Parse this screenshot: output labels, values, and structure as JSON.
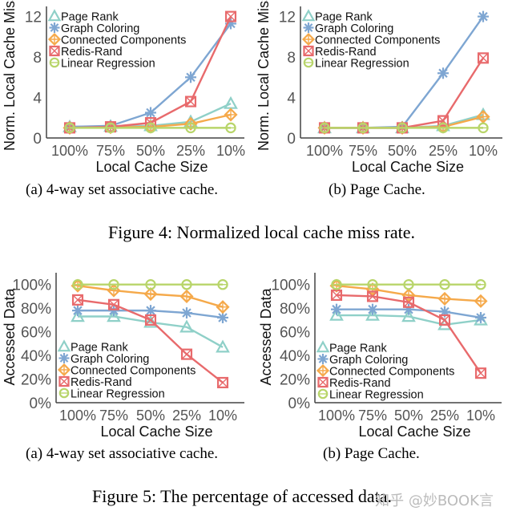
{
  "chart_data": [
    {
      "id": "fig4a",
      "type": "line",
      "xlabel": "Local Cache Size",
      "ylabel": "Norm. Local Cache Miss",
      "categories": [
        "100%",
        "75%",
        "50%",
        "25%",
        "10%"
      ],
      "yticks": [
        0,
        4,
        8,
        12
      ],
      "ytick_labels": [
        "0",
        "4",
        "8",
        "12"
      ],
      "ylim": [
        0,
        13
      ],
      "legend": "top-left",
      "series": [
        {
          "name": "Page Rank",
          "values": [
            1.1,
            1.15,
            1.2,
            1.6,
            3.4
          ]
        },
        {
          "name": "Graph Coloring",
          "values": [
            1.1,
            1.2,
            2.5,
            6.0,
            11.3
          ]
        },
        {
          "name": "Connected Components",
          "values": [
            1.0,
            1.05,
            1.1,
            1.4,
            2.3
          ]
        },
        {
          "name": "Redis-Rand",
          "values": [
            1.0,
            1.1,
            1.5,
            3.6,
            12.0
          ]
        },
        {
          "name": "Linear Regression",
          "values": [
            1.0,
            1.0,
            1.0,
            1.0,
            1.0
          ]
        }
      ]
    },
    {
      "id": "fig4b",
      "type": "line",
      "xlabel": "Local Cache Size",
      "ylabel": "Norm. Local Cache Miss",
      "categories": [
        "100%",
        "75%",
        "50%",
        "25%",
        "10%"
      ],
      "yticks": [
        0,
        4,
        8,
        12
      ],
      "ytick_labels": [
        "0",
        "4",
        "8",
        "12"
      ],
      "ylim": [
        0,
        13
      ],
      "legend": "top-left",
      "series": [
        {
          "name": "Page Rank",
          "values": [
            1.0,
            1.0,
            1.0,
            1.2,
            2.3
          ]
        },
        {
          "name": "Graph Coloring",
          "values": [
            1.0,
            1.0,
            1.1,
            6.4,
            12.0
          ]
        },
        {
          "name": "Connected Components",
          "values": [
            1.0,
            1.0,
            1.0,
            1.1,
            2.1
          ]
        },
        {
          "name": "Redis-Rand",
          "values": [
            1.0,
            1.0,
            1.0,
            1.7,
            7.9
          ]
        },
        {
          "name": "Linear Regression",
          "values": [
            1.0,
            1.0,
            1.0,
            1.0,
            1.0
          ]
        }
      ]
    },
    {
      "id": "fig5a",
      "type": "line",
      "xlabel": "Local Cache Size",
      "ylabel": "Accessed Data",
      "categories": [
        "100%",
        "75%",
        "50%",
        "25%",
        "10%"
      ],
      "yticks": [
        0,
        20,
        40,
        60,
        80,
        100
      ],
      "ytick_labels": [
        "0%",
        "20%",
        "40%",
        "60%",
        "80%",
        "100%"
      ],
      "ylim": [
        0,
        110
      ],
      "legend": "bottom-left",
      "series": [
        {
          "name": "Page Rank",
          "values": [
            73,
            73,
            68,
            64,
            47
          ]
        },
        {
          "name": "Graph Coloring",
          "values": [
            78,
            78,
            78,
            76,
            72
          ]
        },
        {
          "name": "Connected Components",
          "values": [
            99,
            95,
            92,
            90,
            81
          ]
        },
        {
          "name": "Redis-Rand",
          "values": [
            87,
            83,
            70,
            41,
            17
          ]
        },
        {
          "name": "Linear Regression",
          "values": [
            100,
            100,
            100,
            100,
            100
          ]
        }
      ]
    },
    {
      "id": "fig5b",
      "type": "line",
      "xlabel": "Local Cache Size",
      "ylabel": "Accessed Data",
      "categories": [
        "100%",
        "75%",
        "50%",
        "25%",
        "10%"
      ],
      "yticks": [
        0,
        20,
        40,
        60,
        80,
        100
      ],
      "ytick_labels": [
        "0%",
        "20%",
        "40%",
        "60%",
        "80%",
        "100%"
      ],
      "ylim": [
        0,
        110
      ],
      "legend": "bottom-left",
      "series": [
        {
          "name": "Page Rank",
          "values": [
            74,
            74,
            73,
            66,
            70
          ]
        },
        {
          "name": "Graph Coloring",
          "values": [
            79,
            79,
            79,
            77,
            72
          ]
        },
        {
          "name": "Connected Components",
          "values": [
            99,
            96,
            91,
            88,
            86
          ]
        },
        {
          "name": "Redis-Rand",
          "values": [
            91,
            90,
            85,
            70,
            25
          ]
        },
        {
          "name": "Linear Regression",
          "values": [
            100,
            100,
            100,
            100,
            100
          ]
        }
      ]
    }
  ],
  "series_colors": [
    "#8fd0c8",
    "#7ea6d2",
    "#f5a94a",
    "#e86a6c",
    "#b8d56a"
  ],
  "series_markers": [
    "triangle",
    "asterisk",
    "diamond-plus",
    "square-x",
    "circle-minus"
  ],
  "captions": {
    "fig4a": "(a) 4-way set associative cache.",
    "fig4b": "(b) Page Cache.",
    "fig4": "Figure 4: Normalized local cache miss rate.",
    "fig5a": "(a) 4-way set associative cache.",
    "fig5b": "(b) Page Cache.",
    "fig5": "Figure 5: The percentage of accessed data."
  },
  "watermark": "知乎 @妙BOOK言"
}
